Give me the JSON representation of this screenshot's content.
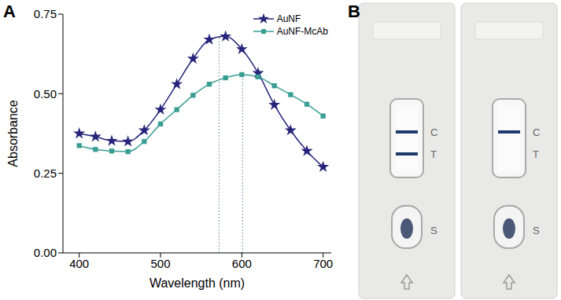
{
  "chart_data": {
    "type": "line",
    "x_label": "Wavelength (nm)",
    "y_label": "Absorbance",
    "x": [
      400,
      420,
      440,
      460,
      480,
      500,
      520,
      540,
      560,
      580,
      600,
      620,
      640,
      660,
      680,
      700
    ],
    "series": [
      {
        "name": "AuNF",
        "color": "#25247a",
        "marker": "star",
        "values": [
          0.375,
          0.365,
          0.352,
          0.35,
          0.385,
          0.45,
          0.53,
          0.61,
          0.67,
          0.68,
          0.64,
          0.565,
          0.465,
          0.385,
          0.32,
          0.27
        ]
      },
      {
        "name": "AuNF-McAb",
        "color": "#3a9e94",
        "marker": "square",
        "values": [
          0.337,
          0.325,
          0.32,
          0.318,
          0.35,
          0.405,
          0.45,
          0.495,
          0.53,
          0.55,
          0.56,
          0.553,
          0.525,
          0.497,
          0.467,
          0.43
        ]
      }
    ],
    "peak_lines": [
      572,
      601
    ],
    "xlim": [
      380,
      710
    ],
    "xticks": [
      400,
      500,
      600,
      700
    ],
    "ylim": [
      0,
      0.75
    ],
    "yticks": [
      {
        "value": 0,
        "label": "0.00"
      },
      {
        "value": 0.25,
        "label": "0.25"
      },
      {
        "value": 0.5,
        "label": "0.50"
      },
      {
        "value": 0.75,
        "label": "0.75"
      }
    ],
    "legend": "upper right",
    "grid": false
  },
  "panel_labels": [
    "A",
    "B"
  ],
  "strips": [
    {
      "bands": [
        "C",
        "T"
      ]
    },
    {
      "bands": [
        "C"
      ]
    }
  ],
  "strip_markers": [
    "C",
    "T",
    "S"
  ]
}
